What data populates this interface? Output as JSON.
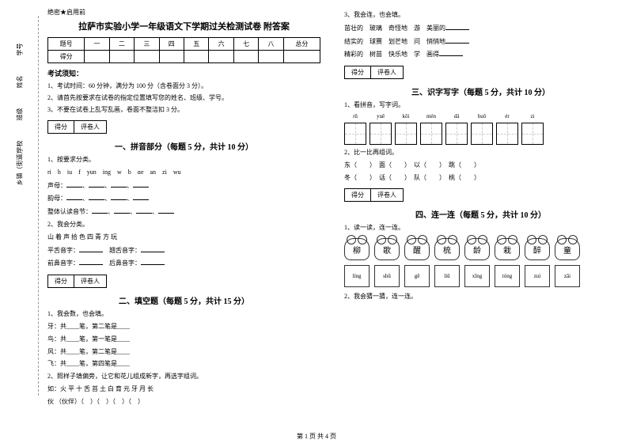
{
  "binding": {
    "labels": [
      "乡镇（街道）",
      "学校",
      "班级",
      "姓名",
      "学号"
    ],
    "marks": [
      "密",
      "封",
      "线",
      "内",
      "不",
      "答",
      "题"
    ]
  },
  "secret": "绝密★启用前",
  "title": "拉萨市实验小学一年级语文下学期过关检测试卷 附答案",
  "scoreTable": {
    "header": [
      "题号",
      "一",
      "二",
      "三",
      "四",
      "五",
      "六",
      "七",
      "八",
      "总分"
    ],
    "row": "得分"
  },
  "noticeHead": "考试须知：",
  "notices": [
    "1、考试时间：60 分钟，满分为 100 分（含卷面分 3 分）。",
    "2、请首先按要求在试卷的指定位置填写您的姓名、班级、学号。",
    "3、不要在试卷上乱写乱画，卷面不整洁扣 3 分。"
  ],
  "scoreBox": {
    "score": "得分",
    "reviewer": "评卷人"
  },
  "sections": {
    "s1": "一、拼音部分（每题 5 分，共计 10 分）",
    "s2": "二、填空题（每题 5 分，共计 15 分）",
    "s3": "三、识字写字（每题 5 分，共计 10 分）",
    "s4": "四、连一连（每题 5 分，共计 10 分）"
  },
  "q1_1": {
    "title": "1、按要求分类。",
    "letters": "ri　h　iu　f　yun　ing　w　b　ɑe　an　zi　wu",
    "lines": [
      "声母：",
      "韵母：",
      "整体认读音节："
    ]
  },
  "q1_2": {
    "title": "2、我会分类。",
    "chars": "山 着 声 拾 色 四 青 方 玩",
    "lines": [
      "平舌音字：",
      "翘舌音字：",
      "前鼻音字：",
      "后鼻音字："
    ]
  },
  "q2_1": {
    "title": "1、我会数，也会填。",
    "lines": [
      "牙：共____笔，第二笔是____",
      "鸟：共____笔，第一笔是____",
      "风：共____笔，第二笔是____",
      "飞：共____笔，第四笔是____"
    ]
  },
  "q2_2": {
    "title": "2、照样子填偏旁，让它和花儿组成新字，再选字组词。",
    "example": "如：火 平 十 舌 苔 土 白 育 元 牙 月 长",
    "line": "伙 （伙伴）（　）（　）（　）（　）"
  },
  "q2_3": {
    "title": "3、我会连，也会填。",
    "pairs": [
      [
        "茁壮的",
        "玻璃",
        "奇怪地",
        "游",
        "美丽的"
      ],
      [
        "结实的",
        "球赛",
        "划芒地",
        "问",
        "悄悄地"
      ],
      [
        "精彩的",
        "树苗",
        "快乐地",
        "学",
        "画得"
      ]
    ]
  },
  "q3_1": {
    "title": "1、看拼音，写字词。",
    "pinyin": [
      "rǔ",
      "yuě",
      "kǒi",
      "mén",
      "dǎ",
      "huǒ",
      "ér",
      "zi"
    ]
  },
  "q3_2": {
    "title": "2、比一比再组词。",
    "lines": [
      "东（　　）　面（　　）　以（　　）　跳（　　）",
      "冬（　　）　话（　　）　队（　　）　桃（　　）"
    ]
  },
  "q4_1": {
    "title": "1、读一读，连一连。",
    "flowers": [
      "柳",
      "歌",
      "醒",
      "梳",
      "龄",
      "栽",
      "醉",
      "童"
    ],
    "leaves": [
      "líng",
      "shū",
      "gē",
      "liǔ",
      "xǐng",
      "tóng",
      "zuì",
      "zāi"
    ]
  },
  "q4_2": "2、我会猜一猜，连一连。",
  "footer": "第 1 页 共 4 页"
}
